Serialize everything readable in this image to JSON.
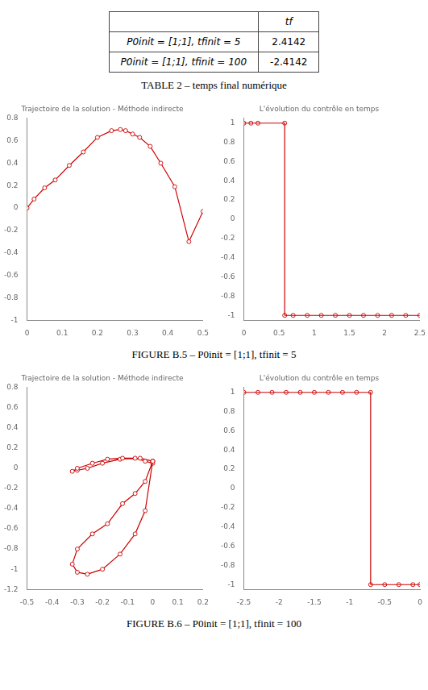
{
  "table": {
    "header": "tf",
    "rows": [
      {
        "label": "P0init = [1;1], tfinit = 5",
        "value": 2.4142
      },
      {
        "label": "P0init = [1;1], tfinit = 100",
        "value": -2.4142
      }
    ],
    "caption": "TABLE 2 – temps final numérique"
  },
  "captions": [
    "FIGURE B.5 – P0init = [1;1], tfinit = 5",
    "FIGURE B.6 – P0init = [1;1], tfinit = 100"
  ],
  "chart_data": [
    {
      "type": "line",
      "title": "Trajectoire de la solution - Méthode indirecte",
      "grid": false,
      "series": [
        {
          "x": [
            0.0,
            0.02,
            0.05,
            0.08,
            0.12,
            0.16,
            0.2,
            0.24,
            0.265,
            0.28,
            0.3,
            0.32,
            0.35,
            0.38,
            0.42,
            0.46,
            0.5
          ],
          "values": [
            0.0,
            0.08,
            0.18,
            0.25,
            0.38,
            0.5,
            0.63,
            0.69,
            0.7,
            0.69,
            0.66,
            0.63,
            0.55,
            0.4,
            0.19,
            -0.3,
            -0.03
          ],
          "color": "#cc0000",
          "marker": "circle",
          "line_style": "solid"
        }
      ],
      "xlim": [
        0.0,
        0.5
      ],
      "ylim": [
        -1.0,
        0.8
      ],
      "xticks": [
        0,
        0.1,
        0.2,
        0.3,
        0.4,
        0.5
      ],
      "yticks": [
        -1.0,
        -0.8,
        -0.6,
        -0.4,
        -0.2,
        0,
        0.2,
        0.4,
        0.6,
        0.8
      ]
    },
    {
      "type": "line",
      "title": "L'évolution du contrôle en temps",
      "grid": false,
      "series": [
        {
          "type": "line",
          "x": [
            0.0,
            0.58,
            0.58
          ],
          "values": [
            1.0,
            1.0,
            -1.0
          ],
          "color": "#cc0000",
          "line_style": "solid"
        },
        {
          "type": "line",
          "x": [
            0.58,
            2.5
          ],
          "values": [
            -1.0,
            -1.0
          ],
          "color": "#cc0000",
          "line_style": "solid"
        },
        {
          "type": "scatter",
          "x": [
            0.0,
            0.1,
            0.2,
            0.58,
            0.58,
            0.7,
            0.9,
            1.1,
            1.3,
            1.5,
            1.7,
            1.9,
            2.1,
            2.3,
            2.5
          ],
          "values": [
            1.0,
            1.0,
            1.0,
            1.0,
            -1.0,
            -1.0,
            -1.0,
            -1.0,
            -1.0,
            -1.0,
            -1.0,
            -1.0,
            -1.0,
            -1.0,
            -1.0
          ],
          "color": "#cc0000",
          "marker": "circle"
        }
      ],
      "xlim": [
        0.0,
        2.5
      ],
      "ylim": [
        -1.05,
        1.05
      ],
      "xticks": [
        0,
        0.5,
        1,
        1.5,
        2,
        2.5
      ],
      "yticks": [
        -1.0,
        -0.8,
        -0.6,
        -0.4,
        -0.2,
        0,
        0.2,
        0.4,
        0.6,
        0.8,
        1.0
      ]
    },
    {
      "type": "line",
      "title": "Trajectoire de la solution - Méthode indirecte",
      "grid": false,
      "series": [
        {
          "x": [
            0.0,
            -0.03,
            -0.07,
            -0.12,
            -0.18,
            -0.24,
            -0.3,
            -0.32,
            -0.3,
            -0.26,
            -0.2,
            -0.13,
            -0.07,
            -0.03,
            0.0
          ],
          "values": [
            0.07,
            -0.13,
            -0.25,
            -0.35,
            -0.55,
            -0.65,
            -0.8,
            -0.95,
            -1.03,
            -1.05,
            -1.0,
            -0.85,
            -0.65,
            -0.42,
            0.07
          ],
          "color": "#cc0000",
          "marker": "circle",
          "line_style": "solid"
        },
        {
          "x": [
            0.0,
            -0.05,
            -0.13,
            -0.2,
            -0.26,
            -0.3,
            -0.32,
            -0.3,
            -0.24,
            -0.18,
            -0.12,
            -0.07,
            -0.03,
            0.0
          ],
          "values": [
            0.07,
            0.1,
            0.09,
            0.05,
            0.0,
            -0.02,
            -0.03,
            0.0,
            0.05,
            0.09,
            0.1,
            0.1,
            0.07,
            0.05
          ],
          "color": "#cc0000",
          "marker": "circle",
          "line_style": "solid"
        }
      ],
      "xlim": [
        -0.5,
        0.2
      ],
      "ylim": [
        -1.2,
        0.8
      ],
      "xticks": [
        -0.5,
        -0.4,
        -0.3,
        -0.2,
        -0.1,
        0,
        0.1,
        0.2
      ],
      "yticks": [
        -1.2,
        -1.0,
        -0.8,
        -0.6,
        -0.4,
        -0.2,
        0,
        0.2,
        0.4,
        0.6,
        0.8
      ]
    },
    {
      "type": "line",
      "title": "L'évolution du contrôle en temps",
      "grid": false,
      "series": [
        {
          "type": "line",
          "x": [
            -2.5,
            -0.7,
            -0.7
          ],
          "values": [
            1.0,
            1.0,
            -1.0
          ],
          "color": "#cc0000",
          "line_style": "solid"
        },
        {
          "type": "line",
          "x": [
            -0.7,
            0.0
          ],
          "values": [
            -1.0,
            -1.0
          ],
          "color": "#cc0000",
          "line_style": "solid"
        },
        {
          "type": "scatter",
          "x": [
            -2.5,
            -2.3,
            -2.1,
            -1.9,
            -1.7,
            -1.5,
            -1.3,
            -1.1,
            -0.9,
            -0.7,
            -0.7,
            -0.5,
            -0.3,
            -0.1,
            0.0
          ],
          "values": [
            1.0,
            1.0,
            1.0,
            1.0,
            1.0,
            1.0,
            1.0,
            1.0,
            1.0,
            1.0,
            -1.0,
            -1.0,
            -1.0,
            -1.0,
            -1.0
          ],
          "color": "#cc0000",
          "marker": "circle"
        }
      ],
      "xlim": [
        -2.5,
        0.0
      ],
      "ylim": [
        -1.05,
        1.05
      ],
      "xticks": [
        -2.5,
        -2,
        -1.5,
        -1,
        -0.5,
        0
      ],
      "yticks": [
        -1.0,
        -0.8,
        -0.6,
        -0.4,
        -0.2,
        0,
        0.2,
        0.4,
        0.6,
        0.8,
        1.0
      ]
    }
  ]
}
